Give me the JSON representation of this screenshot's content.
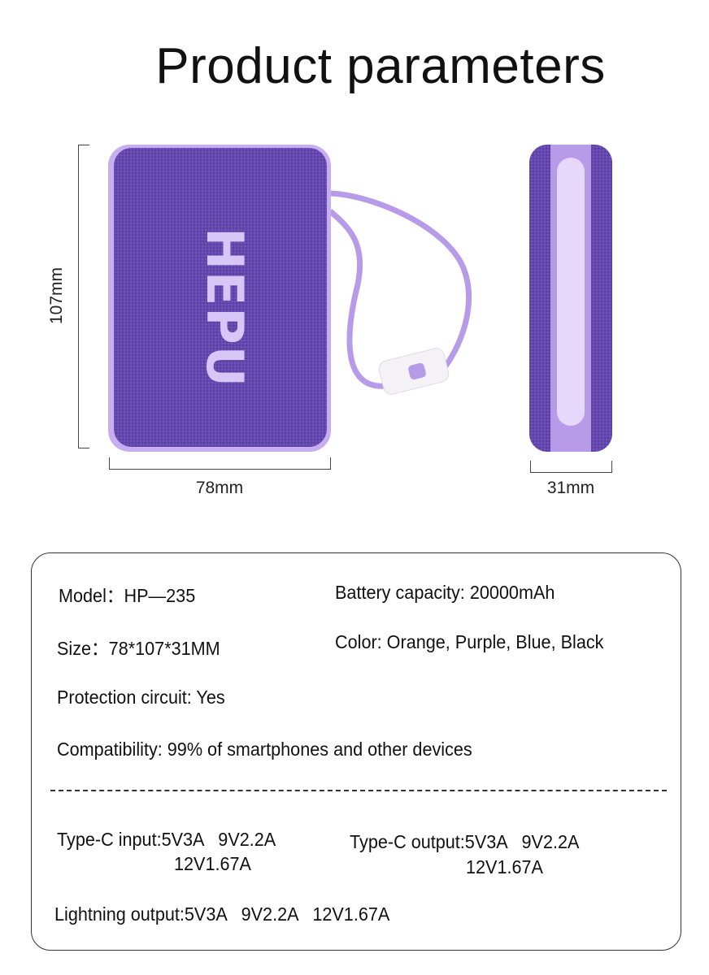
{
  "title": "Product parameters",
  "product": {
    "brand_logo": "HEPU",
    "colors": {
      "body": "#6548ad",
      "edge": "#c6aef0",
      "strap": "#b79be8",
      "logo": "#d8c6f7"
    }
  },
  "dimensions": {
    "height": "107mm",
    "width": "78mm",
    "depth": "31mm"
  },
  "specs": {
    "model": "Model：HP—235",
    "battery": "Battery capacity: 20000mAh",
    "size": "Size：78*107*31MM",
    "color": "Color: Orange, Purple, Blue, Black",
    "protection": "Protection circuit: Yes",
    "compatibility": "Compatibility: 99% of smartphones and other devices",
    "typec_input": "Type-C input:5V3A   9V2.2A",
    "typec_input_2": "12V1.67A",
    "typec_output": "Type-C output:5V3A   9V2.2A",
    "typec_output_2": "12V1.67A",
    "lightning_output": "Lightning output:5V3A   9V2.2A   12V1.67A"
  }
}
